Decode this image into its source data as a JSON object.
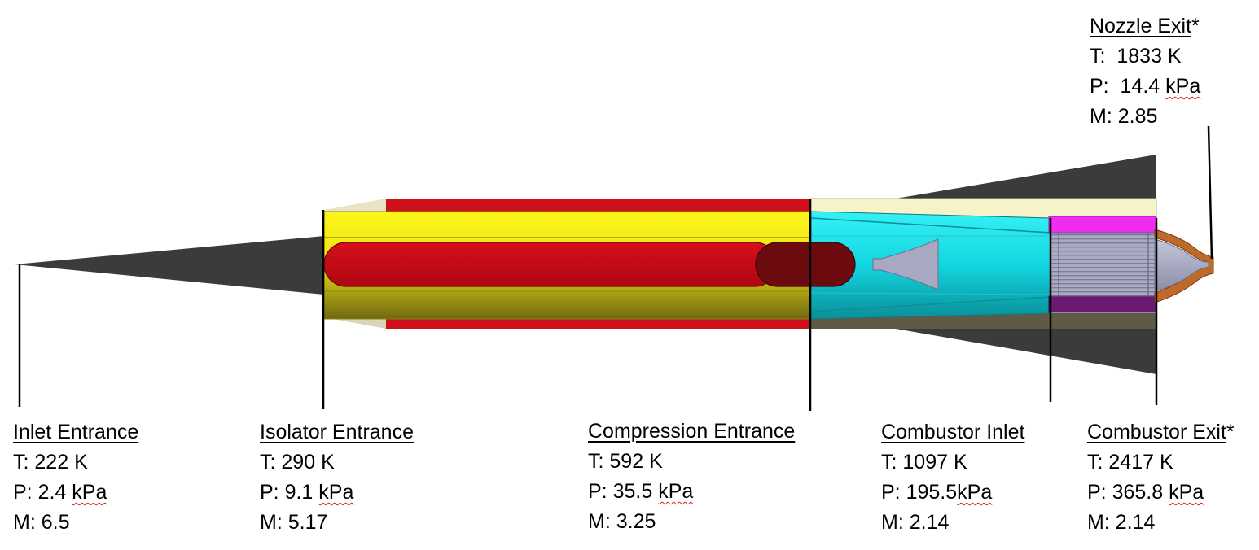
{
  "stations": [
    {
      "id": "inlet-entrance",
      "title": "Inlet Entrance",
      "suffix": "",
      "T_label": "T:",
      "T_value": "222 K",
      "P_label": "P:",
      "P_num": "2.4",
      "P_unit": "kPa",
      "M_label": "M:",
      "M_value": "6.5"
    },
    {
      "id": "isolator-entrance",
      "title": "Isolator Entrance",
      "suffix": "",
      "T_label": "T:",
      "T_value": "290 K",
      "P_label": "P:",
      "P_num": "9.1",
      "P_unit": "kPa",
      "M_label": "M:",
      "M_value": "5.17"
    },
    {
      "id": "compression-entrance",
      "title": "Compression Entrance",
      "suffix": "",
      "T_label": "T:",
      "T_value": "592 K",
      "P_label": "P:",
      "P_num": "35.5",
      "P_unit": "kPa",
      "M_label": "M:",
      "M_value": "3.25"
    },
    {
      "id": "combustor-inlet",
      "title": "Combustor Inlet",
      "suffix": "",
      "T_label": "T:",
      "T_value": "1097 K",
      "P_label": "P:",
      "P_num": "195.5",
      "P_unit": "kPa",
      "M_label": "M:",
      "M_value": "2.14"
    },
    {
      "id": "combustor-exit",
      "title": "Combustor Exit",
      "suffix": "*",
      "T_label": "T:",
      "T_value": "2417 K",
      "P_label": "P:",
      "P_num": "365.8",
      "P_unit": "kPa",
      "M_label": "M:",
      "M_value": "2.14"
    },
    {
      "id": "nozzle-exit",
      "title": "Nozzle Exit",
      "suffix": "*",
      "T_label": "T:",
      "T_value": "1833 K",
      "P_label": "P:",
      "P_num": "14.4",
      "P_unit": "kPa",
      "M_label": "M:",
      "M_value": "2.85"
    }
  ],
  "colors": {
    "fins": "#3b3b3b",
    "yellow_body": "#f6ee12",
    "olive_body": "#8c8414",
    "red_tank": "#c0080c",
    "dark_red_tank": "#6b0b10",
    "red_strip": "#d01018",
    "cyan_section": "#19e3ec",
    "cream": "#f6f3c8",
    "magenta": "#f02cf0",
    "purple": "#6a1a72",
    "grey_steel": "#a7a9c2",
    "copper": "#c06a2a",
    "leader_line": "#000000"
  }
}
